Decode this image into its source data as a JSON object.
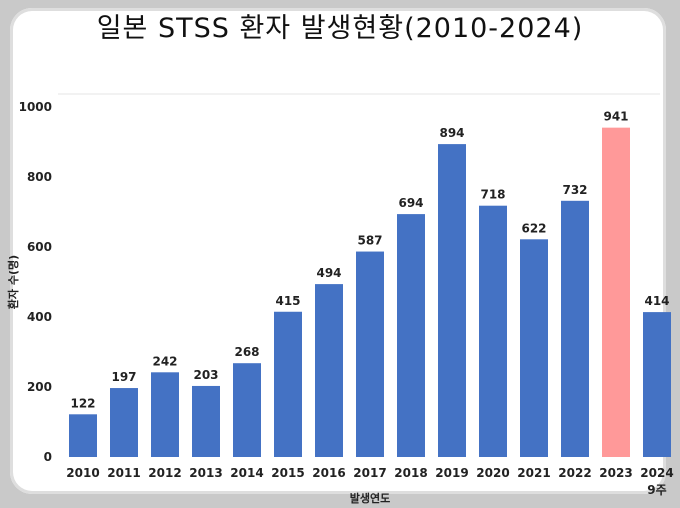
{
  "title": "일본 STSS 환자 발생현황(2010-2024)",
  "chart_data": {
    "type": "bar",
    "title": "일본 STSS 환자 발생현황(2010-2024)",
    "xlabel": "발생연도",
    "ylabel": "환자 수(명)",
    "ylim": [
      0,
      1000
    ],
    "yticks": [
      "0",
      "200",
      "400",
      "600",
      "800",
      "1000"
    ],
    "grid": false,
    "categories": [
      "2010",
      "2011",
      "2012",
      "2013",
      "2014",
      "2015",
      "2016",
      "2017",
      "2018",
      "2019",
      "2020",
      "2021",
      "2022",
      "2023",
      "2024"
    ],
    "category_notes": [
      "",
      "",
      "",
      "",
      "",
      "",
      "",
      "",
      "",
      "",
      "",
      "",
      "",
      "",
      "9주"
    ],
    "values": [
      122,
      197,
      242,
      203,
      268,
      415,
      494,
      587,
      694,
      894,
      718,
      622,
      732,
      941,
      414
    ],
    "bar_color": "#4472c4",
    "highlight_color": "#ff9999",
    "highlight_category": "2023"
  }
}
